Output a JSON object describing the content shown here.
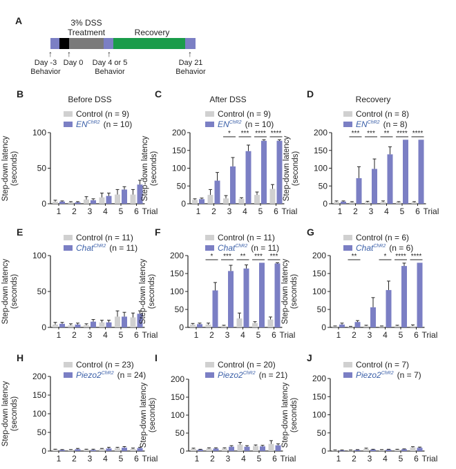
{
  "colors": {
    "control": "#d0d0d0",
    "experimental": "#7b7fc4",
    "label_blue": "#3a5fa8",
    "recovery": "#1a9c4a",
    "treatment": "#7a7a7a",
    "baseline": "#7b7fc4",
    "day0": "#000000"
  },
  "panel_a": {
    "letter": "A",
    "treatment_label_1": "3% DSS",
    "treatment_label_2": "Treatment",
    "recovery_label": "Recovery",
    "markers": [
      {
        "l1": "Day -3",
        "l2": "Behavior"
      },
      {
        "l1": "Day 0",
        "l2": ""
      },
      {
        "l1": "Day 4 or 5",
        "l2": "Behavior"
      },
      {
        "l1": "Day 21",
        "l2": "Behavior"
      }
    ]
  },
  "column_titles": [
    "Before DSS",
    "After DSS",
    "Recovery"
  ],
  "y_label_1": "Step-down latency",
  "y_label_2": "(seconds)",
  "trial_label": "Trial",
  "control_label": "Control",
  "chart_data": [
    {
      "id": "B",
      "type": "bar",
      "gene": "EN",
      "sup": "ChR2",
      "n_control": "(n = 9)",
      "n_exp": "(n = 10)",
      "ylim": [
        0,
        100
      ],
      "yticks": [
        0,
        50,
        100
      ],
      "categories": [
        "1",
        "2",
        "3",
        "4",
        "5",
        "6"
      ],
      "series": [
        {
          "name": "Control",
          "values": [
            3,
            2,
            6,
            9,
            13,
            13
          ],
          "errors": [
            2,
            1,
            4,
            6,
            7,
            7
          ]
        },
        {
          "name": "ENChR2",
          "values": [
            3,
            2,
            5,
            11,
            20,
            27
          ],
          "errors": [
            1,
            1,
            2,
            4,
            4,
            6
          ]
        }
      ],
      "significance": [
        "",
        "",
        "",
        "",
        "",
        ""
      ]
    },
    {
      "id": "C",
      "type": "bar",
      "gene": "EN",
      "sup": "ChR2",
      "n_control": "(n = 9)",
      "n_exp": "(n = 10)",
      "ylim": [
        0,
        200
      ],
      "yticks": [
        0,
        50,
        100,
        150,
        200
      ],
      "categories": [
        "1",
        "2",
        "3",
        "4",
        "5",
        "6"
      ],
      "series": [
        {
          "name": "Control",
          "values": [
            11,
            25,
            15,
            14,
            25,
            42
          ],
          "errors": [
            3,
            15,
            8,
            3,
            8,
            12
          ]
        },
        {
          "name": "ENChR2",
          "values": [
            13,
            65,
            105,
            148,
            177,
            177
          ],
          "errors": [
            3,
            23,
            25,
            17,
            3,
            3
          ]
        }
      ],
      "significance": [
        "",
        "",
        "*",
        "***",
        "****",
        "****"
      ]
    },
    {
      "id": "D",
      "type": "bar",
      "gene": "EN",
      "sup": "ChR2",
      "n_control": "(n = 8)",
      "n_exp": "(n = 8)",
      "ylim": [
        0,
        200
      ],
      "yticks": [
        0,
        50,
        100,
        150,
        200
      ],
      "categories": [
        "1",
        "2",
        "3",
        "4",
        "5",
        "6"
      ],
      "series": [
        {
          "name": "Control",
          "values": [
            5,
            4,
            4,
            5,
            4,
            4
          ],
          "errors": [
            3,
            2,
            3,
            3,
            2,
            2
          ]
        },
        {
          "name": "ENChR2",
          "values": [
            6,
            72,
            98,
            139,
            180,
            180
          ],
          "errors": [
            2,
            32,
            28,
            21,
            0,
            0
          ]
        }
      ],
      "significance": [
        "",
        "***",
        "***",
        "**",
        "****",
        "****"
      ]
    },
    {
      "id": "E",
      "type": "bar",
      "gene": "Chat",
      "sup": "ChR2",
      "n_control": "(n = 11)",
      "n_exp": "(n = 11)",
      "ylim": [
        0,
        100
      ],
      "yticks": [
        0,
        50,
        100
      ],
      "categories": [
        "1",
        "2",
        "3",
        "4",
        "5",
        "6"
      ],
      "series": [
        {
          "name": "Control",
          "values": [
            4,
            3,
            3,
            7,
            15,
            14
          ],
          "errors": [
            3,
            2,
            2,
            3,
            8,
            6
          ]
        },
        {
          "name": "ChatChR2",
          "values": [
            5,
            4,
            8,
            7,
            15,
            19
          ],
          "errors": [
            2,
            2,
            3,
            3,
            6,
            4
          ]
        }
      ],
      "significance": [
        "",
        "",
        "",
        "",
        "",
        ""
      ]
    },
    {
      "id": "F",
      "type": "bar",
      "gene": "Chat",
      "sup": "ChR2",
      "n_control": "(n = 11)",
      "n_exp": "(n = 11)",
      "ylim": [
        0,
        200
      ],
      "yticks": [
        0,
        50,
        100,
        150,
        200
      ],
      "categories": [
        "1",
        "2",
        "3",
        "4",
        "5",
        "6"
      ],
      "series": [
        {
          "name": "Control",
          "values": [
            8,
            8,
            4,
            25,
            12,
            22
          ],
          "errors": [
            3,
            4,
            2,
            15,
            4,
            7
          ]
        },
        {
          "name": "ChatChR2",
          "values": [
            9,
            103,
            157,
            164,
            180,
            178
          ],
          "errors": [
            3,
            22,
            16,
            10,
            0,
            2
          ]
        }
      ],
      "significance": [
        "",
        "*",
        "***",
        "**",
        "***",
        "***"
      ]
    },
    {
      "id": "G",
      "type": "bar",
      "gene": "Chat",
      "sup": "ChR2",
      "n_control": "(n = 6)",
      "n_exp": "(n = 6)",
      "ylim": [
        0,
        200
      ],
      "yticks": [
        0,
        50,
        100,
        150,
        200
      ],
      "categories": [
        "1",
        "2",
        "3",
        "4",
        "5",
        "6"
      ],
      "series": [
        {
          "name": "Control",
          "values": [
            3,
            2,
            4,
            3,
            4,
            4
          ],
          "errors": [
            1,
            1,
            2,
            1,
            2,
            3
          ]
        },
        {
          "name": "ChatChR2",
          "values": [
            8,
            15,
            56,
            104,
            171,
            180
          ],
          "errors": [
            4,
            4,
            27,
            25,
            8,
            0
          ]
        }
      ],
      "significance": [
        "",
        "**",
        "",
        "*",
        "****",
        "****"
      ]
    },
    {
      "id": "H",
      "type": "bar",
      "gene": "Piezo2",
      "sup": "ChR2",
      "n_control": "(n = 23)",
      "n_exp": "(n = 24)",
      "ylim": [
        0,
        200
      ],
      "yticks": [
        0,
        50,
        100,
        150,
        200
      ],
      "categories": [
        "1",
        "2",
        "3",
        "4",
        "5",
        "6"
      ],
      "series": [
        {
          "name": "Control",
          "values": [
            4,
            3,
            4,
            6,
            8,
            6
          ],
          "errors": [
            1,
            1,
            1,
            1,
            2,
            2
          ]
        },
        {
          "name": "Piezo2ChR2",
          "values": [
            3,
            5,
            3,
            7,
            9,
            8
          ],
          "errors": [
            1,
            2,
            2,
            3,
            3,
            2
          ]
        }
      ],
      "significance": [
        "",
        "",
        "",
        "",
        "",
        ""
      ]
    },
    {
      "id": "I",
      "type": "bar",
      "gene": "Piezo2",
      "sup": "ChR2",
      "n_control": "(n = 20)",
      "n_exp": "(n = 21)",
      "ylim": [
        0,
        200
      ],
      "yticks": [
        0,
        50,
        100,
        150,
        200
      ],
      "categories": [
        "1",
        "2",
        "3",
        "4",
        "5",
        "6"
      ],
      "series": [
        {
          "name": "Control",
          "values": [
            6,
            7,
            7,
            18,
            14,
            20
          ],
          "errors": [
            2,
            2,
            2,
            6,
            3,
            9
          ]
        },
        {
          "name": "Piezo2ChR2",
          "values": [
            4,
            7,
            12,
            12,
            13,
            16
          ],
          "errors": [
            1,
            2,
            3,
            3,
            3,
            4
          ]
        }
      ],
      "significance": [
        "",
        "",
        "",
        "",
        "",
        ""
      ]
    },
    {
      "id": "J",
      "type": "bar",
      "gene": "Piezo2",
      "sup": "ChR2",
      "n_control": "(n = 7)",
      "n_exp": "(n = 7)",
      "ylim": [
        0,
        200
      ],
      "yticks": [
        0,
        50,
        100,
        150,
        200
      ],
      "categories": [
        "1",
        "2",
        "3",
        "4",
        "5",
        "6"
      ],
      "series": [
        {
          "name": "Control",
          "values": [
            2,
            2,
            6,
            3,
            4,
            10
          ],
          "errors": [
            1,
            1,
            2,
            1,
            1,
            2
          ]
        },
        {
          "name": "Piezo2ChR2",
          "values": [
            2,
            3,
            4,
            4,
            5,
            9
          ],
          "errors": [
            1,
            1,
            1,
            1,
            1,
            2
          ]
        }
      ],
      "significance": [
        "",
        "",
        "",
        "",
        "",
        ""
      ]
    }
  ]
}
